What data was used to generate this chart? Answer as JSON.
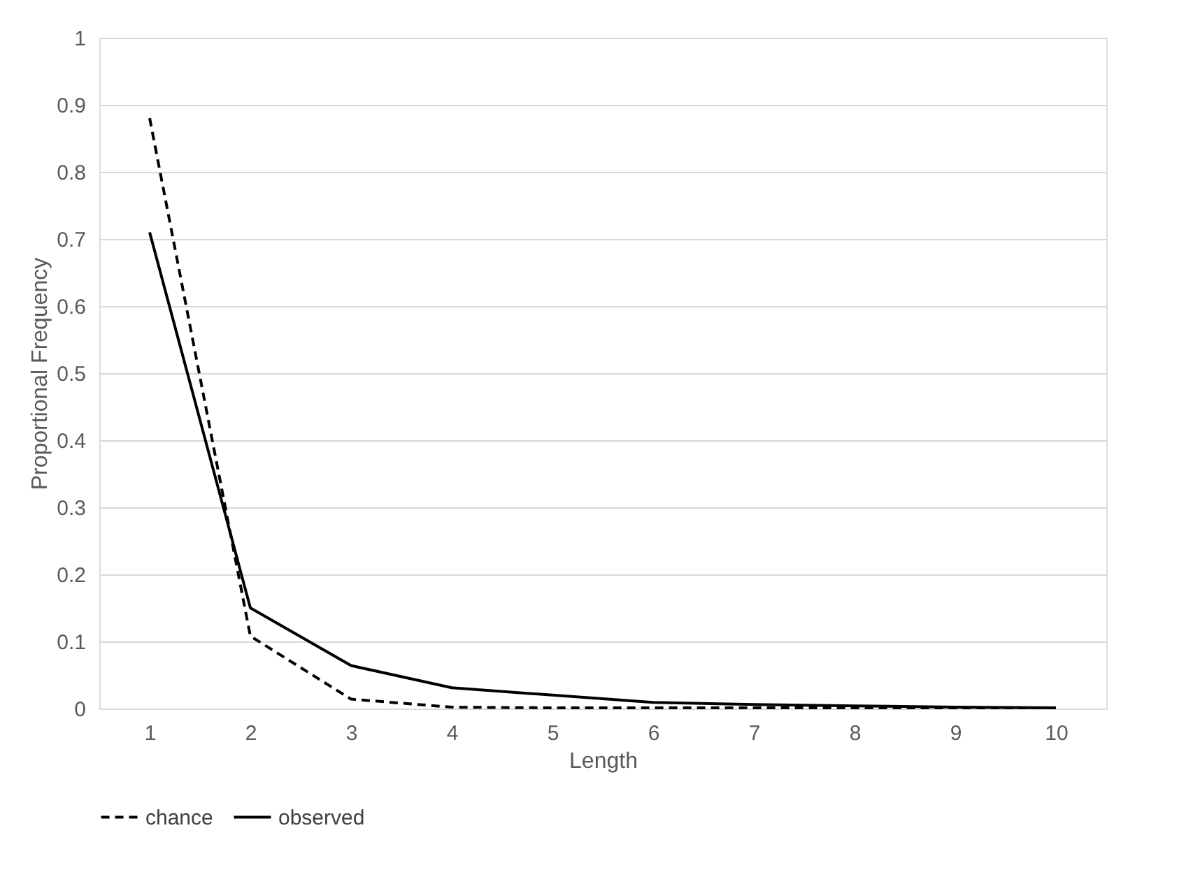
{
  "chart_data": {
    "type": "line",
    "xlabel": "Length",
    "ylabel": "Proportional Frequency",
    "categories": [
      "1",
      "2",
      "3",
      "4",
      "5",
      "6",
      "7",
      "8",
      "9",
      "10"
    ],
    "series": [
      {
        "name": "chance",
        "color": "#000000",
        "line_style": "dashed",
        "values": [
          0.88,
          0.108,
          0.014,
          0.002,
          0.001,
          0.001,
          0.001,
          0.001,
          0.001,
          0.001
        ]
      },
      {
        "name": "observed",
        "color": "#000000",
        "line_style": "solid",
        "values": [
          0.71,
          0.15,
          0.064,
          0.031,
          0.02,
          0.009,
          0.006,
          0.004,
          0.002,
          0.001
        ]
      }
    ],
    "ylim": [
      0,
      1
    ],
    "yticks": [
      0,
      0.1,
      0.2,
      0.3,
      0.4,
      0.5,
      0.6,
      0.7,
      0.8,
      0.9,
      1
    ],
    "grid": "y",
    "legend": "bottom",
    "marker": "none"
  }
}
